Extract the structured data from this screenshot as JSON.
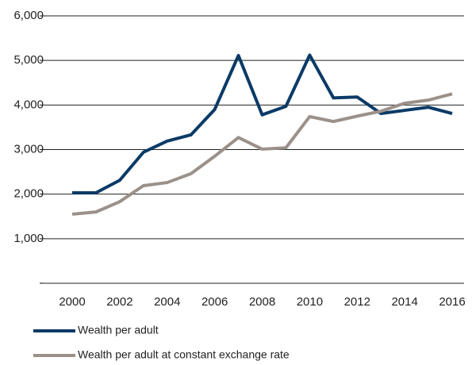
{
  "chart_data": {
    "type": "line",
    "x": [
      2000,
      2001,
      2002,
      2003,
      2004,
      2005,
      2006,
      2007,
      2008,
      2009,
      2010,
      2011,
      2012,
      2013,
      2014,
      2015,
      2016
    ],
    "series": [
      {
        "name": "Wealth per adult",
        "color": "#0b3a66",
        "values": [
          2030,
          2030,
          2310,
          2940,
          3190,
          3330,
          3900,
          5110,
          3780,
          3970,
          5120,
          4160,
          4180,
          3810,
          3880,
          3950,
          3810
        ]
      },
      {
        "name": "Wealth per adult at constant exchange rate",
        "color": "#9b918a",
        "values": [
          1550,
          1600,
          1830,
          2190,
          2260,
          2460,
          2850,
          3270,
          3010,
          3040,
          3740,
          3630,
          3750,
          3860,
          4040,
          4110,
          4250
        ]
      }
    ],
    "xlim": [
      2000,
      2016
    ],
    "xticks": [
      2000,
      2002,
      2004,
      2006,
      2008,
      2010,
      2012,
      2014,
      2016
    ],
    "ylim": [
      0,
      6000
    ],
    "yticks": [
      {
        "value": 0,
        "label": "-"
      },
      {
        "value": 1000,
        "label": "1,000"
      },
      {
        "value": 2000,
        "label": "2,000"
      },
      {
        "value": 3000,
        "label": "3,000"
      },
      {
        "value": 4000,
        "label": "4,000"
      },
      {
        "value": 5000,
        "label": "5,000"
      },
      {
        "value": 6000,
        "label": "6,000"
      }
    ],
    "grid": true,
    "legend": "bottom"
  }
}
